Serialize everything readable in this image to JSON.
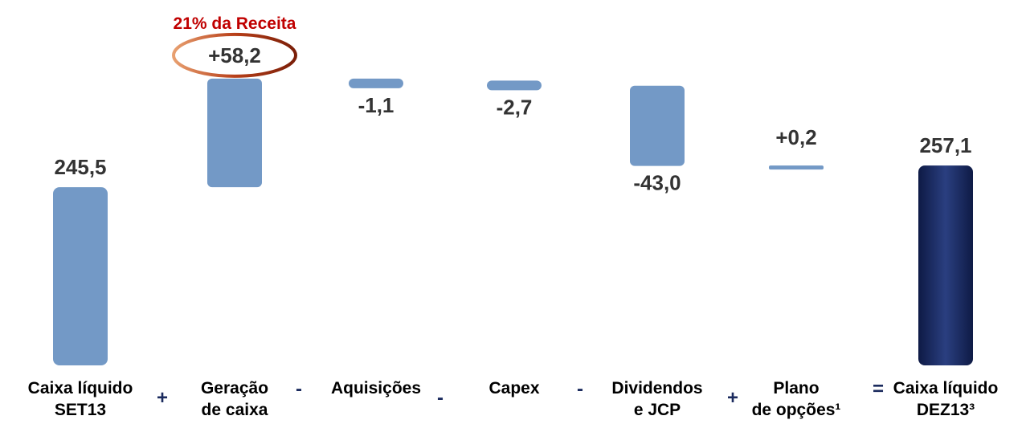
{
  "chart_data": {
    "type": "waterfall",
    "annotation": "21% da Receita",
    "categories": [
      [
        "Caixa líquido",
        "SET13"
      ],
      [
        "Geração",
        "de caixa"
      ],
      [
        "Aquisições"
      ],
      [
        "Capex"
      ],
      [
        "Dividendos",
        "e JCP"
      ],
      [
        "Plano",
        "de opções¹"
      ],
      [
        "Caixa líquido",
        "DEZ13³"
      ]
    ],
    "operators": [
      "+",
      "-",
      "-",
      "-",
      "+",
      "="
    ],
    "values": [
      245.5,
      58.2,
      -1.1,
      -2.7,
      -43.0,
      0.2,
      257.1
    ],
    "value_labels": [
      "245,5",
      "+58,2",
      "-1,1",
      "-2,7",
      "-43,0",
      "+0,2",
      "257,1"
    ],
    "color": "#7399c6",
    "total_color": "#1b2b5e",
    "annotation_color": "#c00000",
    "ylim": [
      150,
      320
    ]
  }
}
